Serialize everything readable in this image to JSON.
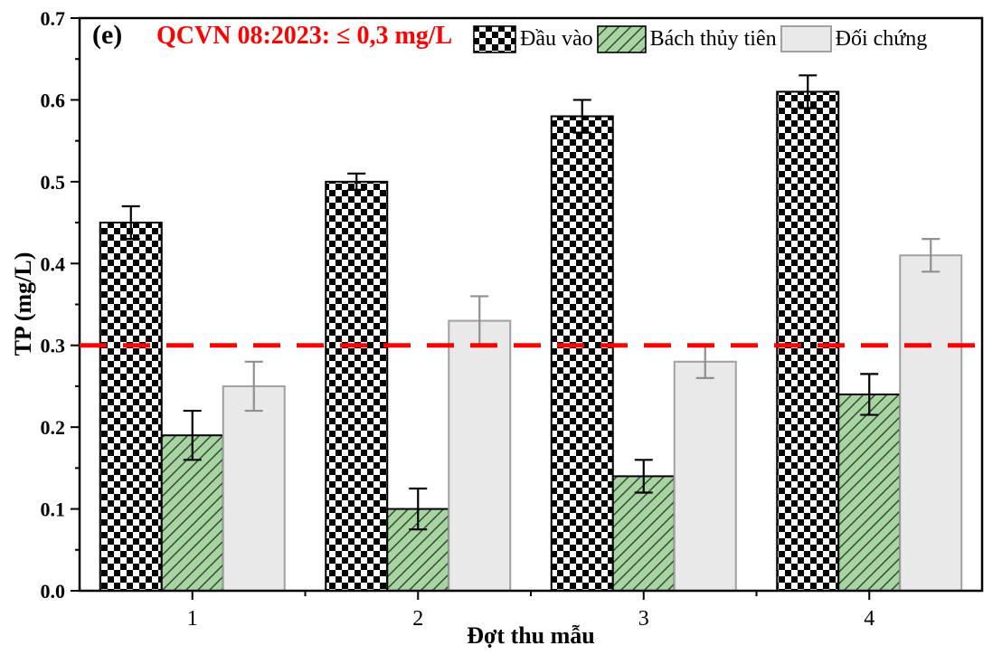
{
  "figure": {
    "panel_label": "(e)",
    "annotation": "QCVN 08:2023: ≤ 0,3 mg/L"
  },
  "chart_data": {
    "type": "bar",
    "title": "",
    "categories": [
      "1",
      "2",
      "3",
      "4"
    ],
    "series": [
      {
        "name": "Đầu vào",
        "pattern": "checker",
        "values": [
          0.45,
          0.5,
          0.58,
          0.61
        ],
        "errors": [
          0.02,
          0.01,
          0.02,
          0.02
        ]
      },
      {
        "name": "Bách thủy tiên",
        "pattern": "hatch",
        "values": [
          0.19,
          0.1,
          0.14,
          0.24
        ],
        "errors": [
          0.03,
          0.025,
          0.02,
          0.025
        ]
      },
      {
        "name": "Đối chứng",
        "pattern": "solid",
        "values": [
          0.25,
          0.33,
          0.28,
          0.41
        ],
        "errors": [
          0.03,
          0.03,
          0.02,
          0.02
        ]
      }
    ],
    "xlabel": "Đợt thu mẫu",
    "ylabel": "TP (mg/L)",
    "ylim": [
      0,
      0.7
    ],
    "ytick_step": 0.1,
    "yminor_step": 0.05,
    "reference_line": {
      "value": 0.3,
      "style": "dashed",
      "label": "QCVN 08:2023: ≤ 0,3 mg/L"
    },
    "legend_position": "top-right-inside",
    "grid": false
  },
  "colors": {
    "annotation_text": "#FF0000",
    "reference_line": "#FF0000",
    "checker_dark": "#000000",
    "checker_light": "#FFFFFF",
    "hatch_fill": "#A5D6A0",
    "hatch_stroke": "#3F3F3F",
    "solid_fill": "#E9E9E9",
    "solid_border": "#A0A0A0",
    "bar_border": "#000000",
    "axis": "#000000",
    "error_dark": "#000000",
    "error_gray": "#8F8F8F"
  }
}
